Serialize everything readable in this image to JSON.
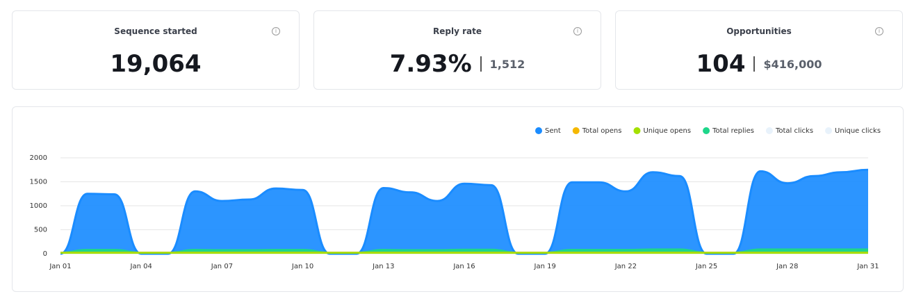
{
  "cards": [
    {
      "title": "Sequence started",
      "value": "19,064"
    },
    {
      "title": "Reply rate",
      "value": "7.93%",
      "secondary": "1,512"
    },
    {
      "title": "Opportunities",
      "value": "104",
      "secondary": "$416,000"
    }
  ],
  "chart_data": {
    "type": "area",
    "categories": [
      "Jan 01",
      null,
      null,
      "Jan 04",
      null,
      null,
      "Jan 07",
      null,
      null,
      "Jan 10",
      null,
      null,
      "Jan 13",
      null,
      null,
      "Jan 16",
      null,
      null,
      "Jan 19",
      null,
      null,
      "Jan 22",
      null,
      null,
      "Jan 25",
      null,
      null,
      "Jan 28",
      null,
      null,
      "Jan 31"
    ],
    "series": [
      {
        "name": "Sent",
        "color": "#1a8cff",
        "values": [
          0,
          1250,
          1240,
          0,
          0,
          1300,
          1100,
          1130,
          1360,
          1330,
          0,
          0,
          1370,
          1280,
          1100,
          1460,
          1430,
          0,
          0,
          1490,
          1490,
          1300,
          1700,
          1620,
          0,
          0,
          1720,
          1470,
          1620,
          1700,
          1750
        ]
      },
      {
        "name": "Total opens",
        "color": "#f5b800",
        "values": [
          30,
          30,
          30,
          30,
          30,
          30,
          30,
          30,
          30,
          30,
          30,
          30,
          30,
          30,
          30,
          30,
          30,
          30,
          30,
          30,
          30,
          30,
          30,
          30,
          30,
          30,
          30,
          30,
          30,
          30,
          30
        ]
      },
      {
        "name": "Unique opens",
        "color": "#a4e000",
        "values": [
          25,
          25,
          25,
          25,
          25,
          25,
          25,
          25,
          25,
          25,
          25,
          25,
          25,
          25,
          25,
          25,
          25,
          25,
          25,
          25,
          25,
          25,
          25,
          25,
          25,
          25,
          25,
          25,
          25,
          25,
          25
        ]
      },
      {
        "name": "Total replies",
        "color": "#1ed68a",
        "values": [
          30,
          90,
          90,
          30,
          30,
          90,
          85,
          85,
          90,
          90,
          30,
          30,
          90,
          85,
          85,
          95,
          95,
          30,
          30,
          90,
          90,
          90,
          100,
          100,
          30,
          30,
          100,
          100,
          100,
          100,
          100
        ]
      },
      {
        "name": "Total clicks",
        "color": "#e8f2fb",
        "hidden": true,
        "values": [
          null,
          null,
          null,
          null,
          null,
          null,
          null,
          null,
          null,
          null,
          null,
          null,
          null,
          null,
          null,
          null,
          null,
          null,
          null,
          null,
          null,
          null,
          null,
          null,
          null,
          null,
          null,
          null,
          null,
          null,
          null
        ]
      },
      {
        "name": "Unique clicks",
        "color": "#e8f2fb",
        "hidden": true,
        "values": [
          null,
          null,
          null,
          null,
          null,
          null,
          null,
          null,
          null,
          null,
          null,
          null,
          null,
          null,
          null,
          null,
          null,
          null,
          null,
          null,
          null,
          null,
          null,
          null,
          null,
          null,
          null,
          null,
          null,
          null,
          null
        ]
      }
    ],
    "ylim": [
      0,
      2000
    ],
    "yticks": [
      0,
      500,
      1000,
      1500,
      2000
    ],
    "grid": true,
    "legend": "top-right"
  }
}
